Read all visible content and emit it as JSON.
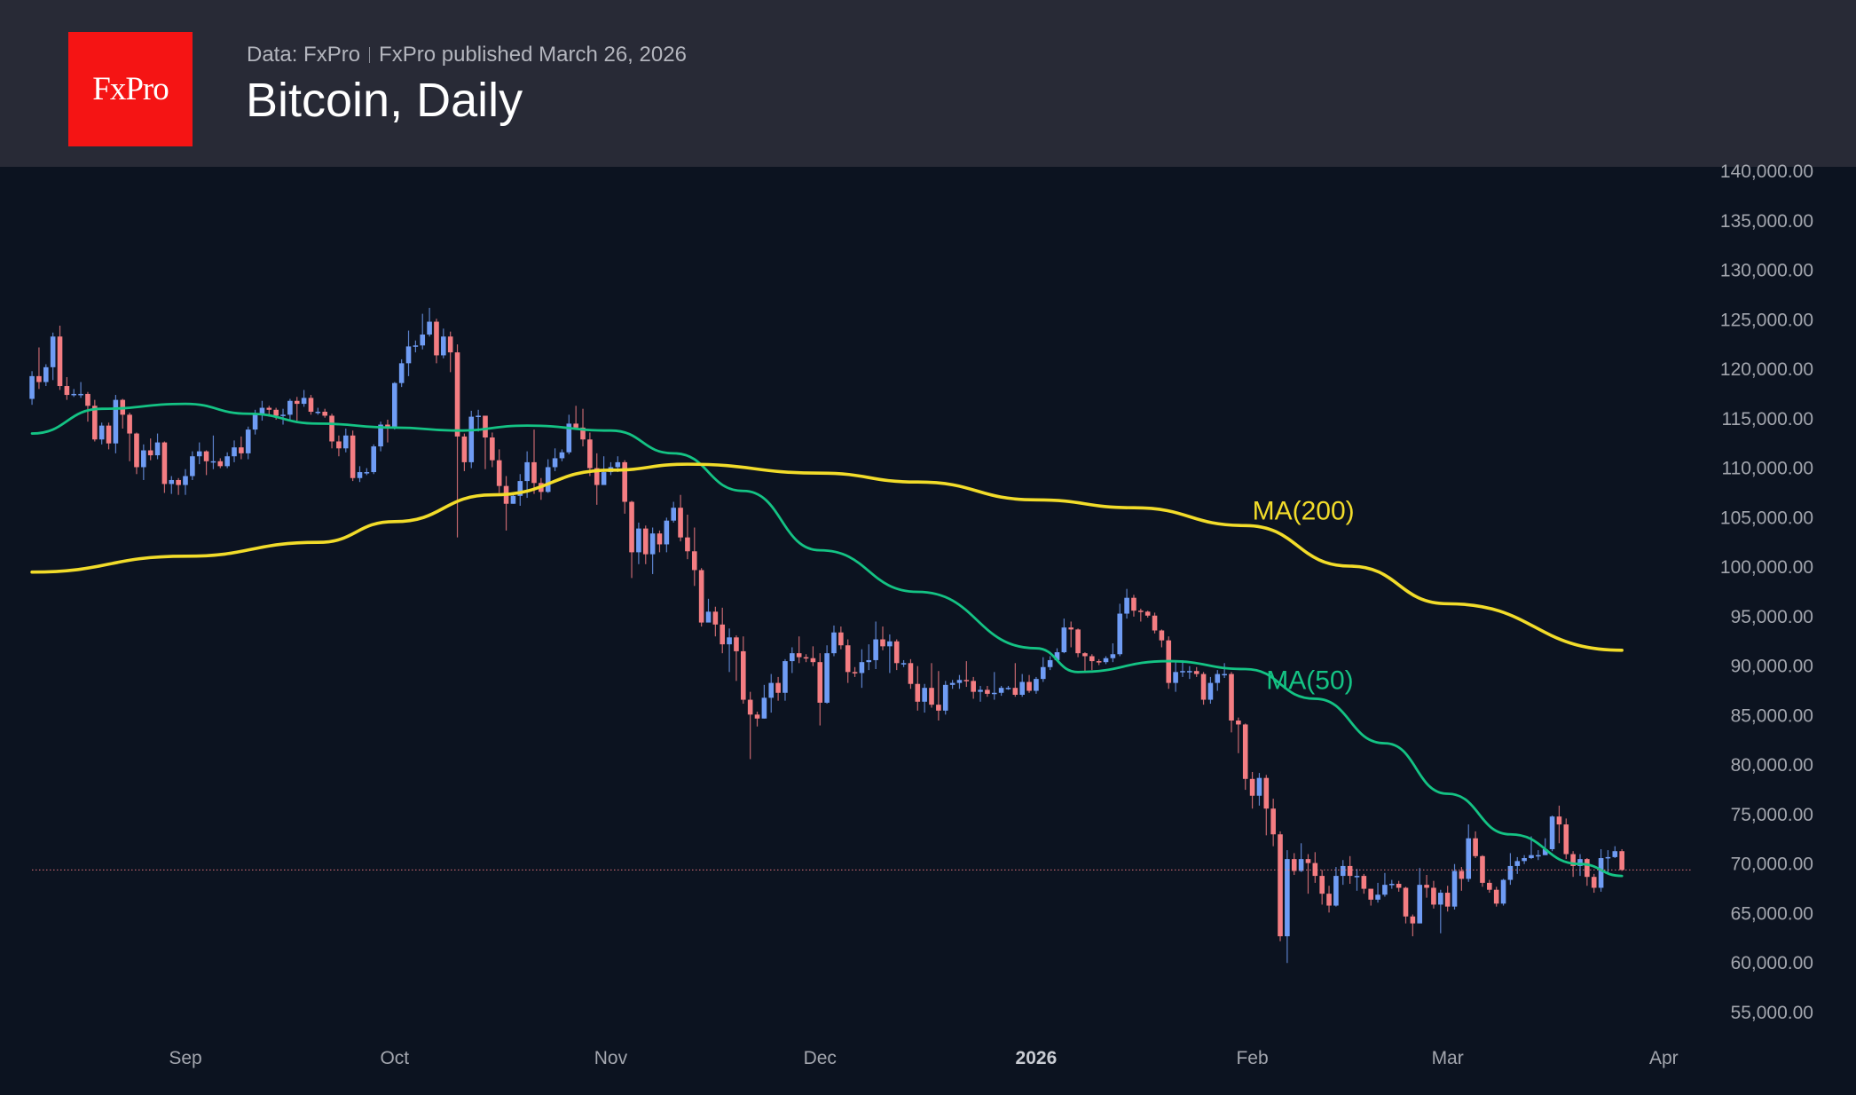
{
  "header": {
    "logo_text": "FxPro",
    "data_source": "Data: FxPro",
    "published": "FxPro published March 26, 2026",
    "title": "Bitcoin, Daily"
  },
  "colors": {
    "background": "#0c1320",
    "header": "#282a36",
    "logo": "#f51414",
    "up_candle": "#6f9cf4",
    "down_candle": "#f47d82",
    "ma50": "#14c384",
    "ma200": "#f2dc2a",
    "last_price_line": "#f47d82"
  },
  "chart_data": {
    "type": "candlestick",
    "title": "Bitcoin, Daily",
    "ylim": [
      55000,
      140000
    ],
    "y_ticks": [
      "140,000.00",
      "135,000.00",
      "130,000.00",
      "125,000.00",
      "120,000.00",
      "115,000.00",
      "110,000.00",
      "105,000.00",
      "100,000.00",
      "95,000.00",
      "90,000.00",
      "85,000.00",
      "80,000.00",
      "75,000.00",
      "70,000.00",
      "65,000.00",
      "60,000.00",
      "55,000.00"
    ],
    "y_tick_values": [
      140000,
      135000,
      130000,
      125000,
      120000,
      115000,
      110000,
      105000,
      100000,
      95000,
      90000,
      85000,
      80000,
      75000,
      70000,
      65000,
      60000,
      55000
    ],
    "x_ticks": [
      {
        "label": "Sep",
        "date": "2025-09-01",
        "bold": false
      },
      {
        "label": "Oct",
        "date": "2025-10-01",
        "bold": false
      },
      {
        "label": "Nov",
        "date": "2025-11-01",
        "bold": false
      },
      {
        "label": "Dec",
        "date": "2025-12-01",
        "bold": false
      },
      {
        "label": "2026",
        "date": "2026-01-01",
        "bold": true
      },
      {
        "label": "Feb",
        "date": "2026-02-01",
        "bold": false
      },
      {
        "label": "Mar",
        "date": "2026-03-01",
        "bold": false
      },
      {
        "label": "Apr",
        "date": "2026-04-01",
        "bold": false
      }
    ],
    "grid": false,
    "last_price": 69400,
    "first_open": 117000,
    "candles_by_month": [
      {
        "month": "2025-08",
        "start_day": 10,
        "close": [
          119300,
          118700,
          120200,
          123300,
          118300,
          117400,
          117500,
          117500,
          116300,
          112900,
          114300,
          112500,
          116900,
          115400,
          113500,
          110100,
          111800,
          111300,
          112600,
          108400,
          108800,
          108300
        ],
        "high": [
          119800,
          122200,
          120500,
          123700,
          124400,
          119200,
          118000,
          118700,
          117700,
          116900,
          114600,
          114600,
          117400,
          117000,
          115600,
          113600,
          112400,
          113000,
          113500,
          112700,
          109200,
          109000
        ],
        "low": [
          116400,
          118000,
          118300,
          118900,
          117900,
          116900,
          117200,
          117100,
          114700,
          112700,
          112400,
          111900,
          111500,
          114000,
          110700,
          109400,
          108800,
          110800,
          110900,
          107500,
          107400,
          107300
        ]
      },
      {
        "month": "2025-09",
        "start_day": 1,
        "close": [
          109200,
          111200,
          111700,
          110700,
          110700,
          110200,
          111200,
          112100,
          111500,
          113900,
          115500,
          116100,
          115900,
          115300,
          115400,
          116800,
          116500,
          117100,
          115700,
          115700,
          115300,
          112700,
          112000,
          113300,
          109000,
          109600,
          109600,
          112200,
          114400,
          114100
        ],
        "high": [
          109900,
          111700,
          112600,
          111800,
          113300,
          111000,
          111600,
          112800,
          113200,
          114200,
          115900,
          116800,
          116300,
          116100,
          116000,
          117000,
          117200,
          117900,
          117400,
          116100,
          116000,
          115500,
          113300,
          114000,
          113800,
          110200,
          110000,
          112400,
          114700,
          114900
        ],
        "low": [
          107300,
          108800,
          110400,
          109300,
          109900,
          110000,
          110000,
          110600,
          110900,
          110900,
          113400,
          114800,
          115200,
          114900,
          114400,
          114800,
          114800,
          116200,
          115400,
          115400,
          115100,
          112000,
          111200,
          111600,
          108700,
          108600,
          109300,
          109400,
          111700,
          112600
        ]
      },
      {
        "month": "2025-10",
        "start_day": 1,
        "close": [
          118600,
          120600,
          122300,
          122400,
          123500,
          124800,
          121400,
          123300,
          121700,
          113200,
          110600,
          115200,
          115300,
          113100,
          110800,
          108200,
          106400,
          107200,
          108700,
          110600,
          108500,
          107600,
          110100,
          111000,
          111600,
          114500,
          114100,
          112900,
          110000,
          108300,
          109600
        ],
        "high": [
          118700,
          121000,
          123900,
          122900,
          125600,
          126200,
          125100,
          124100,
          123800,
          122500,
          113500,
          115800,
          115900,
          115100,
          113600,
          111900,
          109200,
          107500,
          109400,
          111700,
          113900,
          109000,
          110900,
          112000,
          111900,
          115400,
          116300,
          116000,
          113600,
          111500,
          111200
        ],
        "low": [
          113900,
          118200,
          119300,
          121700,
          122000,
          123300,
          120600,
          121100,
          119700,
          103000,
          109700,
          110000,
          113700,
          109900,
          110100,
          107500,
          103700,
          106400,
          106200,
          107000,
          107400,
          106800,
          107500,
          109700,
          110700,
          111400,
          113900,
          112200,
          109200,
          106300,
          108600
        ]
      },
      {
        "month": "2025-11",
        "start_day": 1,
        "close": [
          110100,
          110600,
          106600,
          101500,
          103900,
          101300,
          103400,
          102300,
          104700,
          106000,
          103000,
          101600,
          99700,
          94400,
          95500,
          94200,
          92200,
          92900,
          91500,
          86600,
          85100,
          84700,
          86800,
          88300,
          87300,
          90500,
          91300,
          90900,
          90800,
          90400
        ],
        "high": [
          110600,
          111200,
          110800,
          106700,
          104500,
          104200,
          104000,
          103700,
          105000,
          106600,
          107300,
          105300,
          104000,
          99900,
          96800,
          96000,
          95900,
          93800,
          93100,
          93000,
          87400,
          85400,
          88100,
          89200,
          88900,
          90700,
          91900,
          93000,
          91200,
          92000
        ],
        "low": [
          109300,
          109600,
          105400,
          98900,
          100300,
          100300,
          99300,
          101500,
          101500,
          104500,
          102600,
          100800,
          98100,
          94000,
          94600,
          93000,
          91300,
          89400,
          88500,
          86200,
          80600,
          83900,
          84700,
          85300,
          86500,
          86500,
          89300,
          90300,
          90400,
          90000
        ]
      },
      {
        "month": "2025-12",
        "start_day": 1,
        "close": [
          86300,
          91300,
          93400,
          92100,
          89400,
          89300,
          90400,
          90600,
          92700,
          92000,
          92500,
          90300,
          90300,
          88200,
          86400,
          87800,
          86100,
          85500,
          88100,
          88300,
          88600,
          88500,
          87400,
          87600,
          87200,
          87300,
          87800,
          87800,
          87100,
          88400,
          87500
        ],
        "high": [
          91300,
          92100,
          94100,
          94000,
          92700,
          89900,
          91700,
          92200,
          94500,
          94000,
          93200,
          92700,
          90600,
          90700,
          90000,
          88200,
          90300,
          89500,
          88500,
          88600,
          89100,
          90500,
          88900,
          88000,
          88000,
          89400,
          88000,
          88000,
          90300,
          89200,
          89100
        ],
        "low": [
          84000,
          86200,
          91000,
          91700,
          88300,
          88900,
          87800,
          89600,
          89700,
          91600,
          89300,
          89600,
          89900,
          87700,
          85500,
          85300,
          85800,
          84500,
          85100,
          87700,
          87700,
          87900,
          86700,
          86400,
          86900,
          86600,
          87000,
          87600,
          86900,
          86900,
          87300
        ]
      },
      {
        "month": "2026-01",
        "start_day": 1,
        "close": [
          88700,
          89900,
          90600,
          91400,
          93900,
          93700,
          91300,
          91000,
          90500,
          90400,
          90800,
          91200,
          95300,
          96900,
          95600,
          95500,
          95100,
          93600,
          92600,
          88300,
          89400,
          89500,
          89500,
          89200,
          86600,
          88300,
          89200,
          89200,
          84500,
          84100,
          78600
        ],
        "high": [
          88900,
          90900,
          91000,
          91800,
          94800,
          94500,
          93800,
          91400,
          91200,
          90700,
          91000,
          92300,
          96300,
          97800,
          97200,
          95800,
          95600,
          95400,
          93700,
          93000,
          90400,
          90600,
          90000,
          89900,
          89400,
          88900,
          89600,
          90300,
          89400,
          84800,
          84200
        ],
        "low": [
          87200,
          88400,
          89600,
          90500,
          91300,
          91900,
          90900,
          89500,
          89600,
          90100,
          90200,
          90400,
          91000,
          94800,
          95000,
          94500,
          94900,
          93300,
          91900,
          87700,
          87400,
          88900,
          88700,
          88900,
          86100,
          86200,
          87500,
          88800,
          83300,
          81200,
          77500
        ]
      },
      {
        "month": "2026-02",
        "start_day": 1,
        "close": [
          76900,
          78700,
          75600,
          73000,
          62700,
          70500,
          69300,
          70500,
          70100,
          68800,
          67000,
          65800,
          68800,
          69800,
          68800,
          68800,
          67500,
          66400,
          66900,
          67900,
          68000,
          67600,
          64700,
          64000,
          67900,
          67600,
          65900,
          67100
        ],
        "high": [
          79300,
          79200,
          79000,
          76600,
          73300,
          71400,
          71100,
          72100,
          71000,
          71200,
          69400,
          67800,
          69700,
          70400,
          70800,
          69500,
          69000,
          67500,
          68100,
          69100,
          68400,
          68300,
          67700,
          64900,
          69600,
          68900,
          68300,
          67400
        ],
        "low": [
          75600,
          75900,
          72900,
          71800,
          62200,
          60000,
          68900,
          69200,
          67000,
          68100,
          65900,
          65100,
          65700,
          67900,
          68000,
          67300,
          67000,
          65800,
          66100,
          66700,
          67500,
          67200,
          64000,
          62700,
          64000,
          66600,
          65500,
          63000
        ]
      },
      {
        "month": "2026-03",
        "start_day": 1,
        "close": [
          65700,
          69300,
          68500,
          72600,
          70800,
          68100,
          67400,
          66000,
          68400,
          69800,
          70300,
          70600,
          70900,
          70900,
          71500,
          74800,
          74000,
          71000,
          69800,
          70500,
          68700,
          67600,
          70600,
          70700,
          71300,
          69400
        ],
        "high": [
          67800,
          70000,
          69700,
          74000,
          73300,
          70900,
          68400,
          67700,
          68500,
          71100,
          70700,
          70900,
          72800,
          71400,
          72600,
          74900,
          75900,
          74600,
          71300,
          71000,
          70600,
          69000,
          71500,
          71400,
          71800,
          71500
        ],
        "low": [
          65200,
          65400,
          67300,
          68200,
          70600,
          67700,
          67100,
          65700,
          65800,
          67900,
          69000,
          70000,
          70500,
          70400,
          70900,
          71300,
          72100,
          70500,
          68700,
          68800,
          67800,
          67100,
          67200,
          69000,
          70600,
          69300
        ]
      }
    ],
    "series": [
      {
        "name": "MA(50)",
        "color": "#14c384",
        "points": [
          {
            "date": "2025-08-10",
            "value": 113500
          },
          {
            "date": "2025-08-20",
            "value": 116000
          },
          {
            "date": "2025-09-01",
            "value": 116500
          },
          {
            "date": "2025-09-10",
            "value": 115500
          },
          {
            "date": "2025-09-20",
            "value": 114500
          },
          {
            "date": "2025-10-01",
            "value": 114100
          },
          {
            "date": "2025-10-10",
            "value": 113800
          },
          {
            "date": "2025-10-20",
            "value": 114300
          },
          {
            "date": "2025-11-01",
            "value": 113800
          },
          {
            "date": "2025-11-10",
            "value": 111500
          },
          {
            "date": "2025-11-20",
            "value": 107700
          },
          {
            "date": "2025-12-01",
            "value": 101700
          },
          {
            "date": "2025-12-15",
            "value": 97500
          },
          {
            "date": "2026-01-01",
            "value": 91800
          },
          {
            "date": "2026-01-07",
            "value": 89400
          },
          {
            "date": "2026-01-20",
            "value": 90500
          },
          {
            "date": "2026-01-31",
            "value": 89700
          },
          {
            "date": "2026-02-10",
            "value": 86700
          },
          {
            "date": "2026-02-20",
            "value": 82200
          },
          {
            "date": "2026-03-01",
            "value": 77100
          },
          {
            "date": "2026-03-10",
            "value": 73000
          },
          {
            "date": "2026-03-20",
            "value": 70000
          },
          {
            "date": "2026-03-26",
            "value": 68800
          }
        ]
      },
      {
        "name": "MA(200)",
        "color": "#f2dc2a",
        "points": [
          {
            "date": "2025-08-10",
            "value": 99500
          },
          {
            "date": "2025-09-01",
            "value": 101100
          },
          {
            "date": "2025-09-20",
            "value": 102500
          },
          {
            "date": "2025-10-01",
            "value": 104600
          },
          {
            "date": "2025-10-15",
            "value": 107300
          },
          {
            "date": "2025-11-01",
            "value": 109800
          },
          {
            "date": "2025-11-12",
            "value": 110400
          },
          {
            "date": "2025-12-01",
            "value": 109500
          },
          {
            "date": "2025-12-15",
            "value": 108600
          },
          {
            "date": "2026-01-01",
            "value": 106800
          },
          {
            "date": "2026-01-15",
            "value": 106000
          },
          {
            "date": "2026-01-31",
            "value": 104200
          },
          {
            "date": "2026-02-15",
            "value": 100100
          },
          {
            "date": "2026-03-01",
            "value": 96300
          },
          {
            "date": "2026-03-26",
            "value": 91600
          }
        ]
      }
    ],
    "annotations": [
      {
        "text": "MA(200)",
        "date": "2026-02-01",
        "value": 104800,
        "color": "#f2dc2a"
      },
      {
        "text": "MA(50)",
        "date": "2026-02-03",
        "value": 87700,
        "color": "#14c384"
      }
    ]
  }
}
